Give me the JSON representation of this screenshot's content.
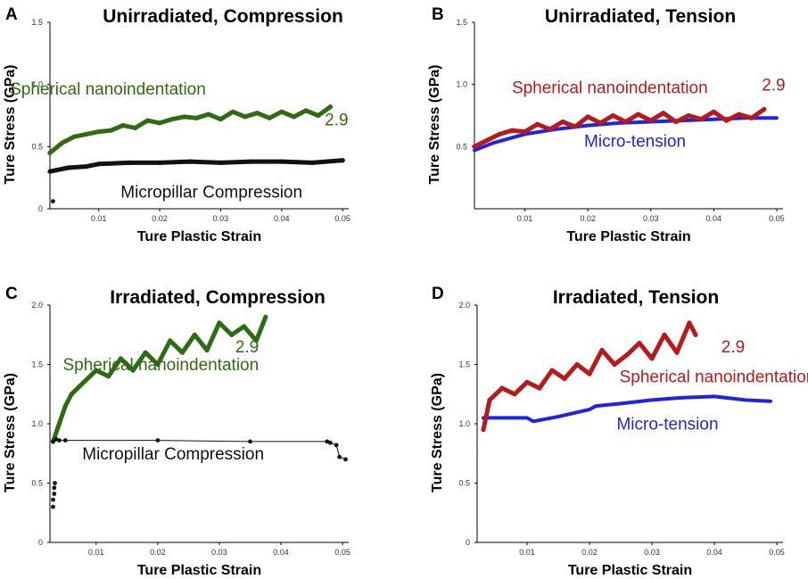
{
  "figure": {
    "background": "#ffffff"
  },
  "chart_data": [
    {
      "type": "line",
      "panel_letter": "A",
      "title": "Unirradiated, Compression",
      "xlabel": "Ture Plastic Strain",
      "ylabel": "Ture Stress (GPa)",
      "xlim": [
        0.002,
        0.051
      ],
      "ylim": [
        0,
        1.5
      ],
      "xticks": [
        0.01,
        0.02,
        0.03,
        0.04,
        0.05
      ],
      "xtick_labels": [
        "0.01",
        "0.02",
        "0.03",
        "0.04",
        "0.05"
      ],
      "yticks": [
        0,
        0.5,
        1.0,
        1.5
      ],
      "ytick_labels": [
        "0",
        "0.5",
        "1.0",
        "1.5"
      ],
      "series": [
        {
          "name": "Spherical nanoindentation",
          "color": "#2e6b12",
          "style": "thick-markers",
          "x": [
            0.002,
            0.004,
            0.006,
            0.008,
            0.01,
            0.012,
            0.014,
            0.016,
            0.018,
            0.02,
            0.022,
            0.024,
            0.026,
            0.028,
            0.03,
            0.032,
            0.034,
            0.036,
            0.038,
            0.04,
            0.042,
            0.044,
            0.046,
            0.048
          ],
          "y": [
            0.45,
            0.53,
            0.58,
            0.6,
            0.62,
            0.63,
            0.67,
            0.65,
            0.71,
            0.69,
            0.72,
            0.74,
            0.73,
            0.76,
            0.72,
            0.78,
            0.74,
            0.77,
            0.73,
            0.78,
            0.74,
            0.79,
            0.75,
            0.82
          ]
        },
        {
          "name": "Micropillar Compression",
          "color": "#111111",
          "style": "thick-markers",
          "x": [
            0.002,
            0.003,
            0.005,
            0.008,
            0.01,
            0.015,
            0.02,
            0.025,
            0.03,
            0.035,
            0.04,
            0.045,
            0.05
          ],
          "y": [
            0.3,
            0.31,
            0.33,
            0.34,
            0.36,
            0.37,
            0.37,
            0.38,
            0.37,
            0.38,
            0.38,
            0.37,
            0.39
          ]
        },
        {
          "name": "Micropillar Compression (initial point)",
          "color": "#111111",
          "style": "markers",
          "x": [
            0.0025
          ],
          "y": [
            0.06
          ]
        }
      ],
      "annotations": [
        {
          "text": "Spherical nanoindentation",
          "color": "#2e6b12",
          "x": 0.0115,
          "y": 0.92
        },
        {
          "text": "2.9",
          "color": "#2e6b12",
          "x": 0.049,
          "y": 0.67
        },
        {
          "text": "Micropillar Compression",
          "color": "#111111",
          "x": 0.0285,
          "y": 0.09
        }
      ]
    },
    {
      "type": "line",
      "panel_letter": "B",
      "title": "Unirradiated, Tension",
      "xlabel": "Ture Plastic Strain",
      "ylabel": "Ture Stress (GPa)",
      "xlim": [
        0.002,
        0.051
      ],
      "ylim": [
        0,
        1.5
      ],
      "xticks": [
        0.01,
        0.02,
        0.03,
        0.04,
        0.05
      ],
      "xtick_labels": [
        "0.01",
        "0.02",
        "0.03",
        "0.04",
        "0.05"
      ],
      "yticks": [
        0.5,
        1.0,
        1.5
      ],
      "ytick_labels": [
        "0.5",
        "1.0",
        "1.5"
      ],
      "series": [
        {
          "name": "Micro-tension",
          "color": "#1f24e0",
          "style": "thick-line",
          "x": [
            0.002,
            0.005,
            0.01,
            0.015,
            0.02,
            0.025,
            0.03,
            0.035,
            0.04,
            0.045,
            0.05
          ],
          "y": [
            0.47,
            0.53,
            0.6,
            0.64,
            0.67,
            0.69,
            0.7,
            0.71,
            0.72,
            0.73,
            0.73
          ]
        },
        {
          "name": "Spherical nanoindentation",
          "color": "#b51b1b",
          "style": "thick-markers",
          "x": [
            0.002,
            0.004,
            0.006,
            0.008,
            0.01,
            0.012,
            0.014,
            0.016,
            0.018,
            0.02,
            0.022,
            0.024,
            0.026,
            0.028,
            0.03,
            0.032,
            0.034,
            0.036,
            0.038,
            0.04,
            0.042,
            0.044,
            0.046,
            0.048
          ],
          "y": [
            0.5,
            0.55,
            0.6,
            0.63,
            0.62,
            0.68,
            0.64,
            0.7,
            0.66,
            0.74,
            0.69,
            0.75,
            0.7,
            0.76,
            0.71,
            0.77,
            0.7,
            0.75,
            0.72,
            0.78,
            0.71,
            0.76,
            0.73,
            0.8
          ]
        }
      ],
      "annotations": [
        {
          "text": "Spherical nanoindentation",
          "color": "#b51b1b",
          "x": 0.0235,
          "y": 0.93
        },
        {
          "text": "2.9",
          "color": "#b51b1b",
          "x": 0.0495,
          "y": 0.95
        },
        {
          "text": "Micro-tension",
          "color": "#1f24e0",
          "x": 0.0275,
          "y": 0.5
        }
      ]
    },
    {
      "type": "line",
      "panel_letter": "C",
      "title": "Irradiated, Compression",
      "xlabel": "Ture Plastic Strain",
      "ylabel": "Ture Stress (GPa)",
      "xlim": [
        0.0025,
        0.051
      ],
      "ylim": [
        0,
        2.0
      ],
      "xticks": [
        0.01,
        0.02,
        0.03,
        0.04,
        0.05
      ],
      "xtick_labels": [
        "0.01",
        "0.02",
        "0.03",
        "0.04",
        "0.05"
      ],
      "yticks": [
        0,
        0.5,
        1.0,
        1.5,
        2.0
      ],
      "ytick_labels": [
        "0",
        "0.5",
        "1.0",
        "1.5",
        "2.0"
      ],
      "series": [
        {
          "name": "Spherical nanoindentation",
          "color": "#2e6b12",
          "style": "thick-markers",
          "x": [
            0.003,
            0.004,
            0.005,
            0.006,
            0.008,
            0.01,
            0.012,
            0.014,
            0.016,
            0.018,
            0.02,
            0.022,
            0.024,
            0.026,
            0.028,
            0.03,
            0.032,
            0.034,
            0.036,
            0.0375
          ],
          "y": [
            0.85,
            1.0,
            1.15,
            1.25,
            1.35,
            1.45,
            1.4,
            1.55,
            1.45,
            1.6,
            1.5,
            1.7,
            1.6,
            1.75,
            1.62,
            1.85,
            1.75,
            1.82,
            1.7,
            1.9
          ]
        },
        {
          "name": "Micropillar Compression",
          "color": "#111111",
          "style": "line-markers",
          "x": [
            0.003,
            0.0035,
            0.004,
            0.005,
            0.02,
            0.035,
            0.0475,
            0.048,
            0.049,
            0.0495,
            0.0505
          ],
          "y": [
            0.85,
            0.87,
            0.86,
            0.86,
            0.86,
            0.85,
            0.85,
            0.84,
            0.82,
            0.72,
            0.7
          ]
        },
        {
          "name": "Micropillar Compression (initial)",
          "color": "#111111",
          "style": "markers",
          "x": [
            0.003,
            0.003,
            0.0032,
            0.0032,
            0.0033
          ],
          "y": [
            0.3,
            0.36,
            0.41,
            0.46,
            0.5
          ]
        }
      ],
      "annotations": [
        {
          "text": "Spherical nanoindentation",
          "color": "#2e6b12",
          "x": 0.0205,
          "y": 1.45
        },
        {
          "text": "2.9",
          "color": "#2e6b12",
          "x": 0.0345,
          "y": 1.6
        },
        {
          "text": "Micropillar Compression",
          "color": "#111111",
          "x": 0.0225,
          "y": 0.7
        }
      ]
    },
    {
      "type": "line",
      "panel_letter": "D",
      "title": "Irradiated, Tension",
      "xlabel": "Ture Plastic Strain",
      "ylabel": "Ture Stress (GPa)",
      "xlim": [
        0.002,
        0.051
      ],
      "ylim": [
        0,
        2.0
      ],
      "xticks": [
        0.01,
        0.02,
        0.03,
        0.04,
        0.05
      ],
      "xtick_labels": [
        "0.01",
        "0.02",
        "0.03",
        "0.04",
        "0.05"
      ],
      "yticks": [
        0,
        0.5,
        1.0,
        1.5,
        2.0
      ],
      "ytick_labels": [
        "0",
        "0.5",
        "1.0",
        "1.5",
        "2.0"
      ],
      "series": [
        {
          "name": "Micro-tension",
          "color": "#1f24e0",
          "style": "thick-line",
          "x": [
            0.003,
            0.006,
            0.01,
            0.011,
            0.015,
            0.02,
            0.021,
            0.025,
            0.03,
            0.035,
            0.04,
            0.045,
            0.049
          ],
          "y": [
            1.05,
            1.05,
            1.05,
            1.02,
            1.06,
            1.12,
            1.15,
            1.17,
            1.2,
            1.22,
            1.23,
            1.2,
            1.19
          ]
        },
        {
          "name": "Spherical nanoindentation",
          "color": "#b51b1b",
          "style": "thick-markers",
          "x": [
            0.003,
            0.004,
            0.006,
            0.008,
            0.01,
            0.012,
            0.014,
            0.016,
            0.018,
            0.02,
            0.022,
            0.024,
            0.026,
            0.028,
            0.03,
            0.032,
            0.034,
            0.036,
            0.037
          ],
          "y": [
            0.95,
            1.2,
            1.3,
            1.25,
            1.35,
            1.3,
            1.45,
            1.38,
            1.5,
            1.42,
            1.62,
            1.5,
            1.58,
            1.68,
            1.55,
            1.75,
            1.6,
            1.85,
            1.75
          ]
        }
      ],
      "annotations": [
        {
          "text": "Spherical nanoindentation",
          "color": "#b51b1b",
          "x": 0.0405,
          "y": 1.35
        },
        {
          "text": "2.9",
          "color": "#b51b1b",
          "x": 0.043,
          "y": 1.6
        },
        {
          "text": "Micro-tension",
          "color": "#1f24e0",
          "x": 0.0325,
          "y": 0.95
        }
      ]
    }
  ]
}
